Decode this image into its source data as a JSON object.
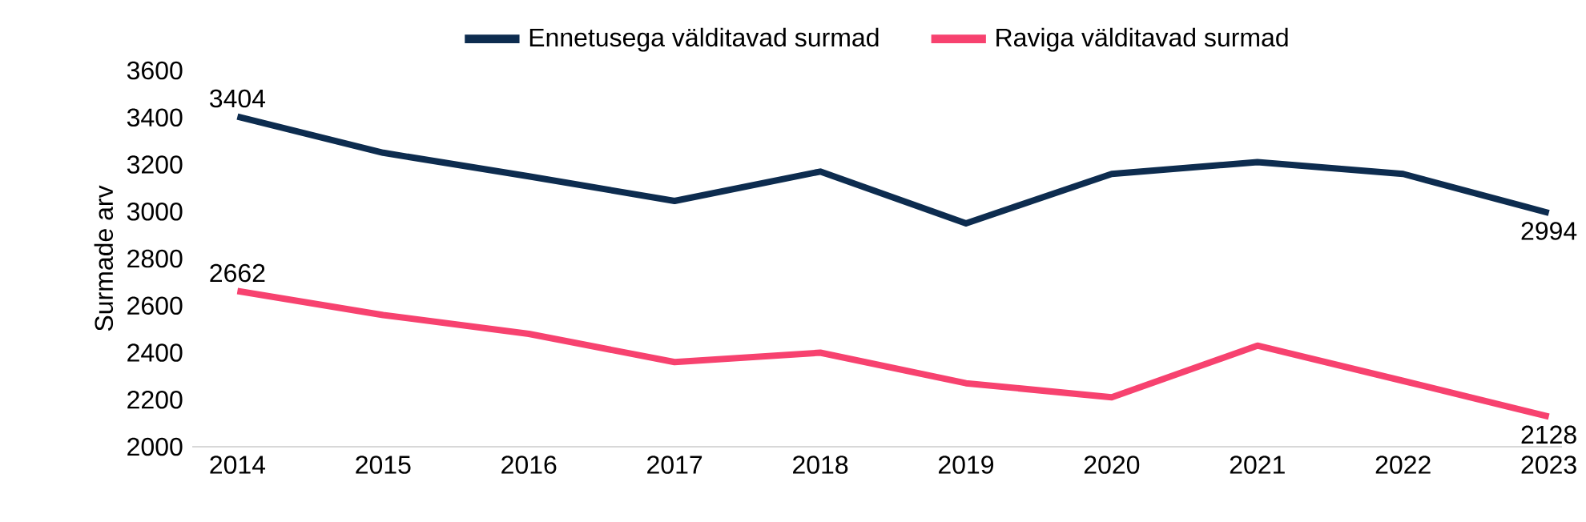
{
  "chart_data": {
    "type": "line",
    "ylabel": "Surmade arv",
    "categories": [
      "2014",
      "2015",
      "2016",
      "2017",
      "2018",
      "2019",
      "2020",
      "2021",
      "2022",
      "2023"
    ],
    "series": [
      {
        "name": "Ennetusega välditavad surmad",
        "color": "#0d2c4f",
        "values": [
          3404,
          3250,
          3150,
          3045,
          3170,
          2950,
          3160,
          3210,
          3160,
          2994
        ],
        "value_labels": [
          "3404",
          null,
          null,
          null,
          null,
          null,
          null,
          null,
          null,
          "2994"
        ]
      },
      {
        "name": "Raviga välditavad surmad",
        "color": "#f7426f",
        "values": [
          2662,
          2560,
          2480,
          2360,
          2400,
          2270,
          2210,
          2430,
          2280,
          2128
        ],
        "value_labels": [
          "2662",
          null,
          null,
          null,
          null,
          null,
          null,
          null,
          null,
          "2128"
        ]
      }
    ],
    "ylim": [
      2000,
      3600
    ],
    "yticks": [
      2000,
      2200,
      2400,
      2600,
      2800,
      3000,
      3200,
      3400,
      3600
    ],
    "grid": false,
    "legend": "top",
    "marker": "none",
    "line_style": "solid"
  }
}
